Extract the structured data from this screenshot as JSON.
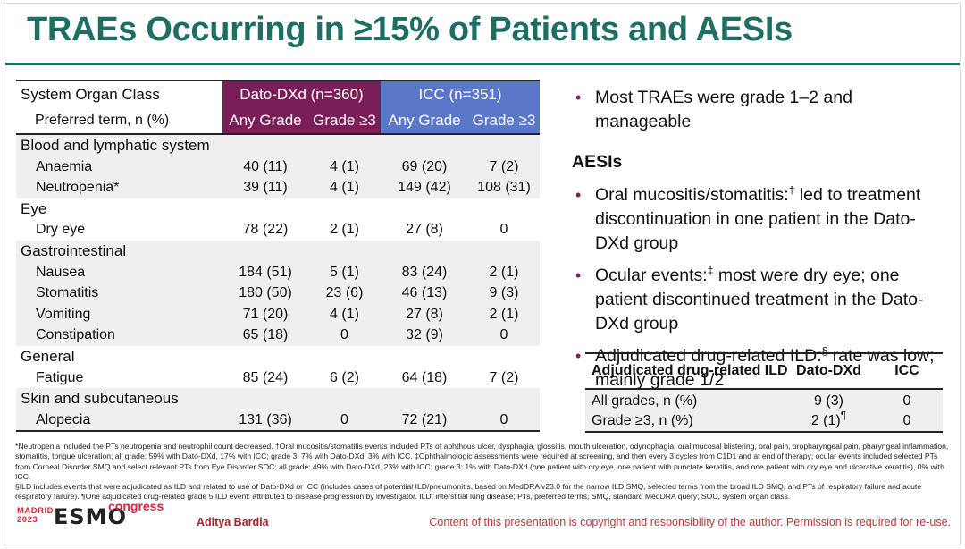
{
  "slide": {
    "title": "TRAEs Occurring in ≥15% of Patients and AESIs"
  },
  "main_table": {
    "col_soc": "System Organ Class",
    "col_pt": "Preferred term, n (%)",
    "dato_header": "Dato-DXd (n=360)",
    "icc_header": "ICC (n=351)",
    "any_grade": "Any Grade",
    "grade3": "Grade ≥3",
    "groups": [
      {
        "name": "Blood and lymphatic system",
        "rows": [
          {
            "term": "Anaemia",
            "vals": [
              "40 (11)",
              "4 (1)",
              "69 (20)",
              "7 (2)"
            ]
          },
          {
            "term": "Neutropenia*",
            "vals": [
              "39 (11)",
              "4 (1)",
              "149 (42)",
              "108 (31)"
            ]
          }
        ]
      },
      {
        "name": "Eye",
        "rows": [
          {
            "term": "Dry eye",
            "vals": [
              "78 (22)",
              "2 (1)",
              "27 (8)",
              "0"
            ]
          }
        ]
      },
      {
        "name": "Gastrointestinal",
        "rows": [
          {
            "term": "Nausea",
            "vals": [
              "184 (51)",
              "5 (1)",
              "83 (24)",
              "2 (1)"
            ]
          },
          {
            "term": "Stomatitis",
            "vals": [
              "180 (50)",
              "23 (6)",
              "46 (13)",
              "9 (3)"
            ]
          },
          {
            "term": "Vomiting",
            "vals": [
              "71 (20)",
              "4 (1)",
              "27 (8)",
              "2 (1)"
            ]
          },
          {
            "term": "Constipation",
            "vals": [
              "65 (18)",
              "0",
              "32 (9)",
              "0"
            ]
          }
        ]
      },
      {
        "name": "General",
        "rows": [
          {
            "term": "Fatigue",
            "vals": [
              "85 (24)",
              "6 (2)",
              "64 (18)",
              "7 (2)"
            ]
          }
        ]
      },
      {
        "name": "Skin and subcutaneous",
        "rows": [
          {
            "term": "Alopecia",
            "vals": [
              "131 (36)",
              "0",
              "72 (21)",
              "0"
            ]
          }
        ]
      }
    ]
  },
  "bullets": {
    "b1": "Most TRAEs were grade 1–2 and manageable",
    "aesi_title": "AESIs",
    "b2_pre": "Oral mucositis/stomatitis:",
    "b2_sup": "†",
    "b2_post": " led to treatment discontinuation in one patient in the Dato-DXd group",
    "b3_pre": "Ocular events:",
    "b3_sup": "‡",
    "b3_post": " most were dry eye; one patient discontinued treatment in the Dato-DXd group",
    "b4_pre": "Adjudicated drug-related ILD:",
    "b4_sup": "§",
    "b4_post": " rate was low; mainly grade 1/2"
  },
  "ild_table": {
    "h1": "Adjudicated drug-related ILD",
    "h2": "Dato-DXd",
    "h3": "ICC",
    "r1": [
      "All grades, n (%)",
      "9 (3)",
      "0"
    ],
    "r2_label": "Grade ≥3, n (%)",
    "r2_dato": "2 (1)",
    "r2_sup": "¶",
    "r2_icc": "0"
  },
  "footnotes": {
    "f1": "*Neutropenia included the PTs neutropenia and neutrophil count decreased. †Oral mucositis/stomatitis events included PTs of aphthous ulcer, dysphagia, glossitis, mouth ulceration, odynophagia, oral mucosal blistering, oral pain, oropharyngeal pain, pharyngeal inflammation, stomatitis, tongue ulceration; all grade: 59% with Dato-DXd, 17% with ICC; grade 3: 7% with Dato-DXd, 3% with ICC. ‡Ophthalmologic assessments were required at screening, and then every 3 cycles from C1D1 and at end of therapy; ocular events included selected PTs from Corneal Disorder SMQ and select relevant PTs from Eye Disorder SOC; all grade: 49% with Dato-DXd, 23% with ICC; grade 3: 1% with Dato-DXd (one patient with dry eye, one patient with punctate keratitis, and one patient with dry eye and ulcerative keratitis), 0% with ICC.",
    "f2": "§ILD includes events that were adjudicated as ILD and related to use of Dato-DXd or ICC (includes cases of potential ILD/pneumonitis, based on MedDRA v23.0 for the narrow ILD SMQ, selected terms from the broad ILD SMQ, and PTs of respiratory failure and acute respiratory failure). ¶One adjudicated drug-related grade 5 ILD event: attributed to disease progression by investigator. ILD, interstitial lung disease; PTs, preferred terms; SMQ, standard MedDRA query; SOC, system organ class."
  },
  "footer": {
    "logo_city": "MADRID",
    "logo_year": "2023",
    "logo_esmo": "ESMO",
    "logo_congress": "congress",
    "presenter": "Aditya Bardia",
    "copyright": "Content of this presentation is copyright and responsibility of the author. Permission is required for re-use."
  },
  "colors": {
    "title_green": "#1e6f63",
    "dato_purple": "#7a1e5a",
    "icc_blue": "#5a77c9",
    "esmo_red": "#d7263d"
  }
}
